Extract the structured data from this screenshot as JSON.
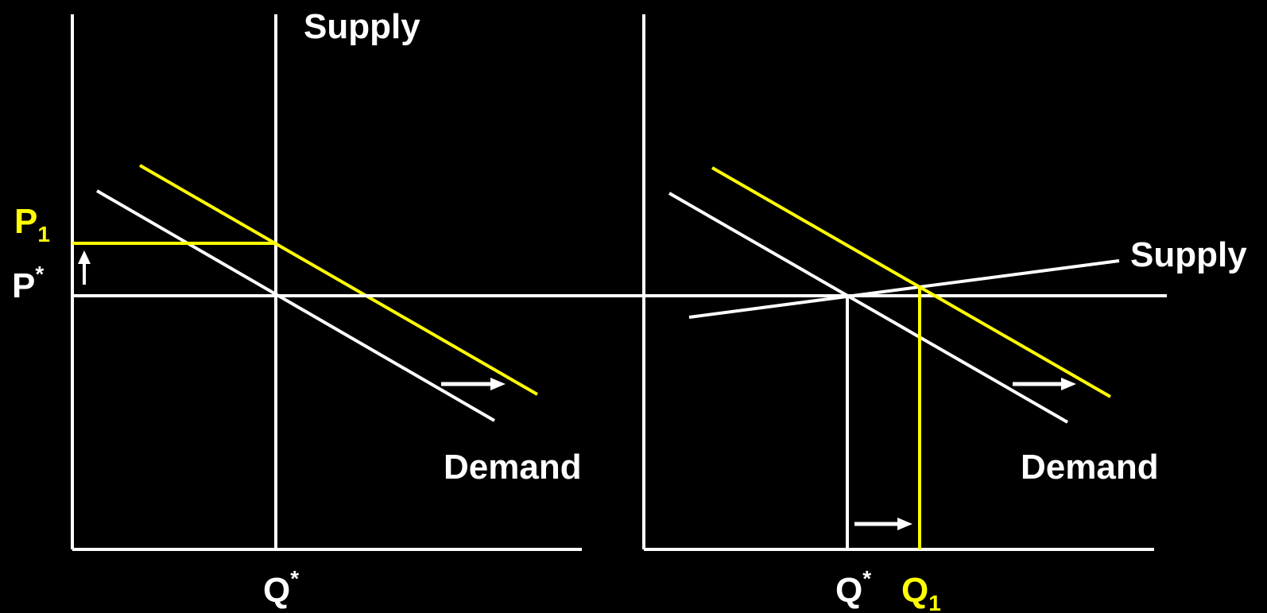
{
  "colors": {
    "background": "#000000",
    "primary": "#ffffff",
    "shift": "#ffff00"
  },
  "left_panel": {
    "supply_label": "Supply",
    "demand_label": "Demand",
    "p1_main": "P",
    "p1_sub": "1",
    "pstar_main": "P",
    "pstar_sup": "*",
    "qstar_main": "Q",
    "qstar_sup": "*"
  },
  "right_panel": {
    "supply_label": "Supply",
    "demand_label": "Demand",
    "qstar_main": "Q",
    "qstar_sup": "*",
    "q1_main": "Q",
    "q1_sub": "1"
  }
}
